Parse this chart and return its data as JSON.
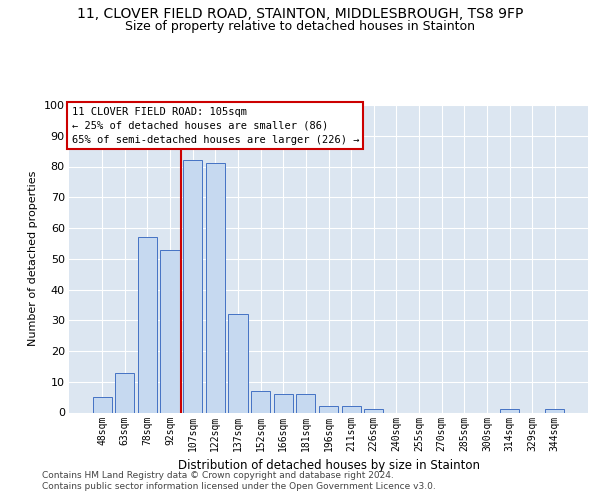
{
  "title1": "11, CLOVER FIELD ROAD, STAINTON, MIDDLESBROUGH, TS8 9FP",
  "title2": "Size of property relative to detached houses in Stainton",
  "xlabel": "Distribution of detached houses by size in Stainton",
  "ylabel": "Number of detached properties",
  "categories": [
    "48sqm",
    "63sqm",
    "78sqm",
    "92sqm",
    "107sqm",
    "122sqm",
    "137sqm",
    "152sqm",
    "166sqm",
    "181sqm",
    "196sqm",
    "211sqm",
    "226sqm",
    "240sqm",
    "255sqm",
    "270sqm",
    "285sqm",
    "300sqm",
    "314sqm",
    "329sqm",
    "344sqm"
  ],
  "values": [
    5,
    13,
    57,
    53,
    82,
    81,
    32,
    7,
    6,
    6,
    2,
    2,
    1,
    0,
    0,
    0,
    0,
    0,
    1,
    0,
    1
  ],
  "bar_color": "#c6d9f0",
  "bar_edge_color": "#4472c4",
  "vline_pos": 3.5,
  "vline_color": "#cc0000",
  "annot_line1": "11 CLOVER FIELD ROAD: 105sqm",
  "annot_line2": "← 25% of detached houses are smaller (86)",
  "annot_line3": "65% of semi-detached houses are larger (226) →",
  "annotation_box_facecolor": "#ffffff",
  "annotation_box_edgecolor": "#cc0000",
  "background_color": "#dce6f1",
  "grid_color": "#ffffff",
  "footer1": "Contains HM Land Registry data © Crown copyright and database right 2024.",
  "footer2": "Contains public sector information licensed under the Open Government Licence v3.0.",
  "ylim": [
    0,
    100
  ],
  "yticks": [
    0,
    10,
    20,
    30,
    40,
    50,
    60,
    70,
    80,
    90,
    100
  ]
}
